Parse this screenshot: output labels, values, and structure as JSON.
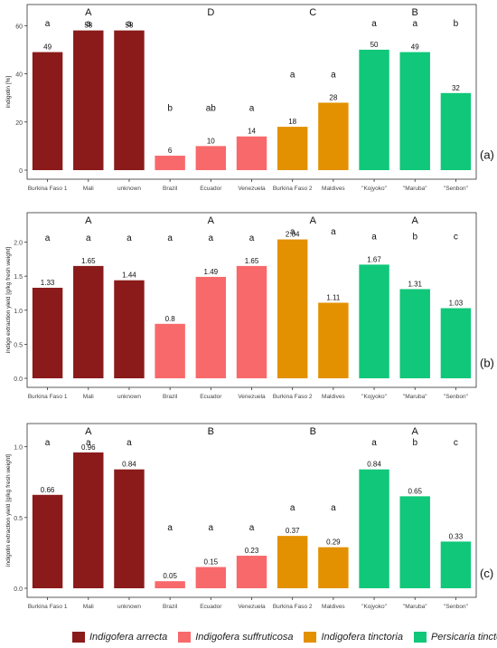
{
  "colors": {
    "Indigofera arrecta": "#8b1a1a",
    "Indigofera suffruticosa": "#f8696b",
    "Indigofera tinctoria": "#e39100",
    "Persicaria tinctoria": "#10c77a"
  },
  "chart_data": [
    {
      "type": "bar",
      "panel_label": "(a)",
      "ylabel": "indigotin [%]",
      "ylim": [
        0,
        65
      ],
      "yticks": [
        0,
        20,
        40,
        60
      ],
      "categories": [
        "Burkina Faso 1",
        "Mali",
        "unknown",
        "Brazil",
        "Ecuador",
        "Venezuela",
        "Burkina Faso 2",
        "Maldives",
        "\"Kojyoko\"",
        "\"Maruba\"",
        "\"Senbon\""
      ],
      "species": [
        "Indigofera arrecta",
        "Indigofera arrecta",
        "Indigofera arrecta",
        "Indigofera suffruticosa",
        "Indigofera suffruticosa",
        "Indigofera suffruticosa",
        "Indigofera tinctoria",
        "Indigofera tinctoria",
        "Persicaria tinctoria",
        "Persicaria tinctoria",
        "Persicaria tinctoria"
      ],
      "values": [
        49,
        58,
        58,
        6,
        10,
        14,
        18,
        28,
        50,
        49,
        32
      ],
      "value_labels": [
        "49",
        "58",
        "58",
        "6",
        "10",
        "14",
        "18",
        "28",
        "50",
        "49",
        "32"
      ],
      "within_letters": [
        "a",
        "a",
        "a",
        "b",
        "ab",
        "a",
        "a",
        "a",
        "a",
        "a",
        "b"
      ],
      "group_letters": [
        "A",
        "D",
        "C",
        "B"
      ]
    },
    {
      "type": "bar",
      "panel_label": "(b)",
      "ylabel": "indigo extraction yield [g/kg fresh weight]",
      "ylim": [
        0,
        2.3
      ],
      "yticks": [
        0.0,
        0.5,
        1.0,
        1.5,
        2.0
      ],
      "categories": [
        "Burkina Faso 1",
        "Mali",
        "unknown",
        "Brazil",
        "Ecuador",
        "Venezuela",
        "Burkina Faso 2",
        "Maldives",
        "\"Kojyoko\"",
        "\"Maruba\"",
        "\"Senbon\""
      ],
      "species": [
        "Indigofera arrecta",
        "Indigofera arrecta",
        "Indigofera arrecta",
        "Indigofera suffruticosa",
        "Indigofera suffruticosa",
        "Indigofera suffruticosa",
        "Indigofera tinctoria",
        "Indigofera tinctoria",
        "Persicaria tinctoria",
        "Persicaria tinctoria",
        "Persicaria tinctoria"
      ],
      "values": [
        1.33,
        1.65,
        1.44,
        0.8,
        1.49,
        1.65,
        2.04,
        1.11,
        1.67,
        1.31,
        1.03
      ],
      "value_labels": [
        "1.33",
        "1.65",
        "1.44",
        "0.8",
        "1.49",
        "1.65",
        "2.04",
        "1.11",
        "1.67",
        "1.31",
        "1.03"
      ],
      "within_letters": [
        "a",
        "a",
        "a",
        "a",
        "a",
        "a",
        "a",
        "a",
        "a",
        "b",
        "c"
      ],
      "group_letters": [
        "A",
        "A",
        "A",
        "A"
      ]
    },
    {
      "type": "bar",
      "panel_label": "(c)",
      "ylabel": "indigotin extraction yield [g/kg fresh weight]",
      "ylim": [
        0,
        1.1
      ],
      "yticks": [
        0.0,
        0.5,
        1.0
      ],
      "categories": [
        "Burkina Faso 1",
        "Mali",
        "unknown",
        "Brazil",
        "Ecuador",
        "Venezuela",
        "Burkina Faso 2",
        "Maldives",
        "\"Kojyoko\"",
        "\"Maruba\"",
        "\"Senbon\""
      ],
      "species": [
        "Indigofera arrecta",
        "Indigofera arrecta",
        "Indigofera arrecta",
        "Indigofera suffruticosa",
        "Indigofera suffruticosa",
        "Indigofera suffruticosa",
        "Indigofera tinctoria",
        "Indigofera tinctoria",
        "Persicaria tinctoria",
        "Persicaria tinctoria",
        "Persicaria tinctoria"
      ],
      "values": [
        0.66,
        0.96,
        0.84,
        0.05,
        0.15,
        0.23,
        0.37,
        0.29,
        0.84,
        0.65,
        0.33
      ],
      "value_labels": [
        "0.66",
        "0.96",
        "0.84",
        "0.05",
        "0.15",
        "0.23",
        "0.37",
        "0.29",
        "0.84",
        "0.65",
        "0.33"
      ],
      "within_letters": [
        "a",
        "a",
        "a",
        "a",
        "a",
        "a",
        "a",
        "a",
        "a",
        "b",
        "c"
      ],
      "group_letters": [
        "A",
        "B",
        "B",
        "A"
      ]
    }
  ],
  "legend": {
    "items": [
      {
        "label": "Indigofera arrecta",
        "color": "#8b1a1a"
      },
      {
        "label": "Indigofera suffruticosa",
        "color": "#f8696b"
      },
      {
        "label": "Indigofera tinctoria",
        "color": "#e39100"
      },
      {
        "label": "Persicaria tinctoria",
        "color": "#10c77a"
      }
    ]
  }
}
